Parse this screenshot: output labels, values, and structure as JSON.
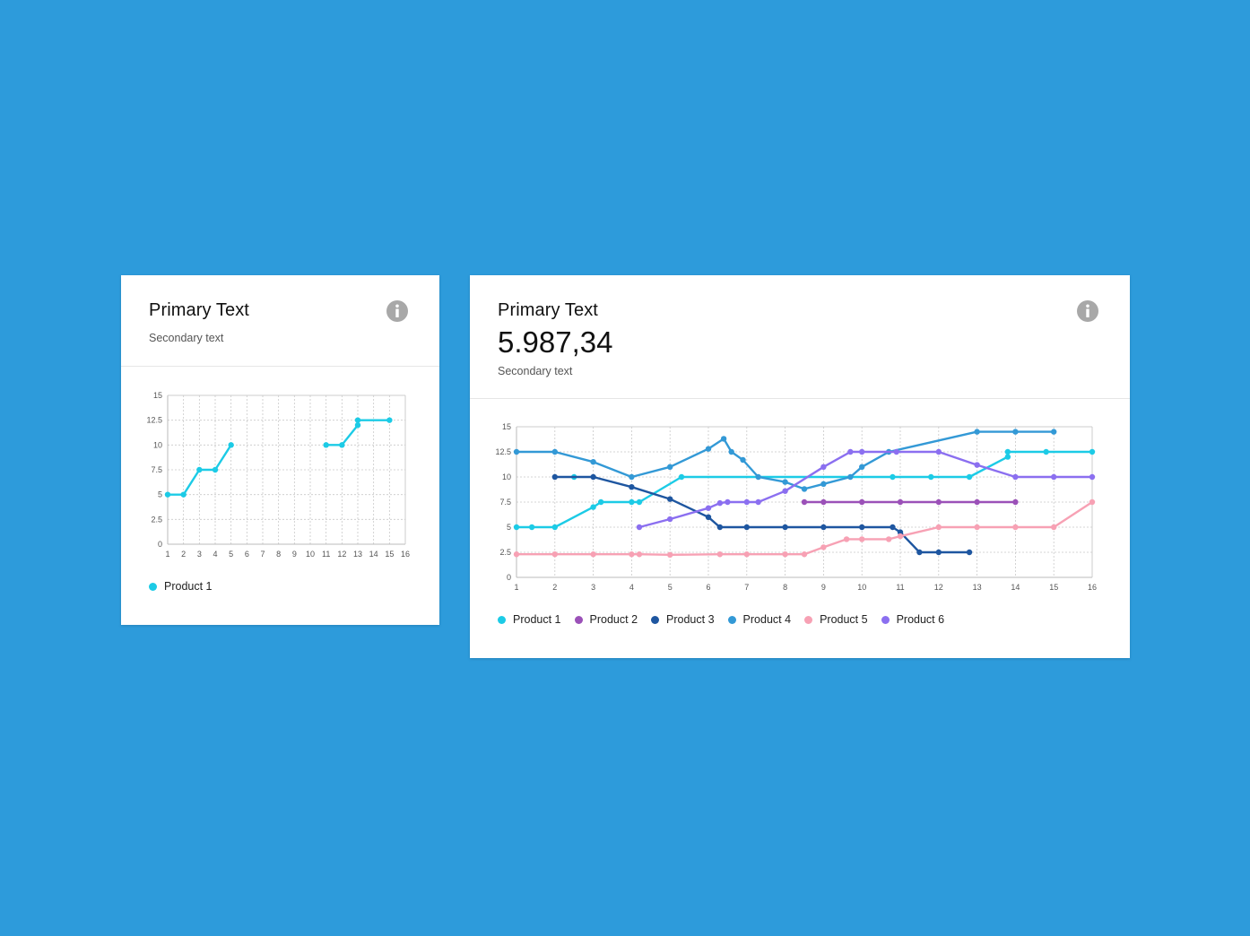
{
  "colors": {
    "background": "#2d9bdb",
    "product1": "#1ccbe6",
    "product2": "#9b51b8",
    "product3": "#1e56a0",
    "product4": "#3399d6",
    "product5": "#f7a1b4",
    "product6": "#8b6ff0"
  },
  "cards": [
    {
      "title": "Primary Text",
      "subtitle": "Secondary text",
      "info_icon": "info-icon",
      "legend": [
        {
          "label": "Product 1",
          "color": "#1ccbe6"
        }
      ]
    },
    {
      "title": "Primary Text",
      "metric": "5.987,34",
      "subtitle": "Secondary text",
      "info_icon": "info-icon",
      "legend": [
        {
          "label": "Product 1",
          "color": "#1ccbe6"
        },
        {
          "label": "Product 2",
          "color": "#9b51b8"
        },
        {
          "label": "Product 3",
          "color": "#1e56a0"
        },
        {
          "label": "Product 4",
          "color": "#3399d6"
        },
        {
          "label": "Product 5",
          "color": "#f7a1b4"
        },
        {
          "label": "Product 6",
          "color": "#8b6ff0"
        }
      ]
    }
  ],
  "chart_data": [
    {
      "type": "line",
      "grid": true,
      "xlim": [
        1,
        16
      ],
      "ylim": [
        0,
        15
      ],
      "xticks": [
        1,
        2,
        3,
        4,
        5,
        6,
        7,
        8,
        9,
        10,
        11,
        12,
        13,
        14,
        15,
        16
      ],
      "yticks": [
        "0",
        "2.5",
        "5",
        "7.5",
        "10",
        "12.5",
        "15"
      ],
      "series": [
        {
          "name": "Product 1",
          "color": "#1ccbe6",
          "segments": [
            [
              [
                1,
                5
              ],
              [
                2,
                5
              ],
              [
                3,
                7.5
              ],
              [
                4,
                7.5
              ],
              [
                5,
                10
              ]
            ],
            [
              [
                11,
                10
              ],
              [
                12,
                10
              ],
              [
                13,
                12
              ],
              [
                13,
                12.5
              ],
              [
                15,
                12.5
              ]
            ]
          ]
        }
      ]
    },
    {
      "type": "line",
      "grid": true,
      "xlim": [
        1,
        16
      ],
      "ylim": [
        0,
        15
      ],
      "xticks": [
        1,
        2,
        3,
        4,
        5,
        6,
        7,
        8,
        9,
        10,
        11,
        12,
        13,
        14,
        15,
        16
      ],
      "yticks": [
        "0",
        "2.5",
        "5",
        "7.5",
        "10",
        "12.5",
        "15"
      ],
      "series": [
        {
          "name": "Product 1",
          "color": "#1ccbe6",
          "segments": [
            [
              [
                1,
                5
              ],
              [
                1.4,
                5
              ],
              [
                2,
                5
              ],
              [
                3,
                7
              ],
              [
                3.2,
                7.5
              ],
              [
                4,
                7.5
              ],
              [
                4.2,
                7.5
              ],
              [
                5.3,
                10
              ],
              [
                10.8,
                10
              ],
              [
                11.8,
                10
              ],
              [
                12.8,
                10
              ],
              [
                13.8,
                12
              ],
              [
                13.8,
                12.5
              ],
              [
                14.8,
                12.5
              ],
              [
                16,
                12.5
              ]
            ],
            [
              [
                2.5,
                10
              ]
            ]
          ]
        },
        {
          "name": "Product 2",
          "color": "#9b51b8",
          "segments": [
            [
              [
                8.5,
                7.5
              ],
              [
                9,
                7.5
              ],
              [
                10,
                7.5
              ],
              [
                11,
                7.5
              ],
              [
                12,
                7.5
              ],
              [
                13,
                7.5
              ],
              [
                14,
                7.5
              ]
            ]
          ]
        },
        {
          "name": "Product 3",
          "color": "#1e56a0",
          "segments": [
            [
              [
                2,
                10
              ],
              [
                3,
                10
              ],
              [
                4,
                9
              ],
              [
                5,
                7.8
              ],
              [
                6,
                6
              ],
              [
                6.3,
                5
              ],
              [
                7,
                5
              ],
              [
                8,
                5
              ],
              [
                9,
                5
              ],
              [
                10,
                5
              ],
              [
                10.8,
                5
              ],
              [
                11,
                4.5
              ],
              [
                11.5,
                2.5
              ],
              [
                12,
                2.5
              ],
              [
                12.8,
                2.5
              ]
            ]
          ]
        },
        {
          "name": "Product 4",
          "color": "#3399d6",
          "segments": [
            [
              [
                1,
                12.5
              ],
              [
                2,
                12.5
              ],
              [
                3,
                11.5
              ],
              [
                4,
                10
              ],
              [
                5,
                11
              ],
              [
                6,
                12.8
              ],
              [
                6.4,
                13.8
              ],
              [
                6.6,
                12.5
              ],
              [
                6.9,
                11.7
              ],
              [
                7.3,
                10
              ],
              [
                8,
                9.5
              ],
              [
                8.5,
                8.8
              ],
              [
                9,
                9.3
              ],
              [
                9.7,
                10
              ],
              [
                10,
                11
              ],
              [
                10.7,
                12.5
              ],
              [
                13,
                14.5
              ],
              [
                14,
                14.5
              ],
              [
                15,
                14.5
              ]
            ]
          ]
        },
        {
          "name": "Product 5",
          "color": "#f7a1b4",
          "segments": [
            [
              [
                1,
                2.3
              ],
              [
                2,
                2.3
              ],
              [
                3,
                2.3
              ],
              [
                4,
                2.3
              ],
              [
                4.2,
                2.3
              ],
              [
                5,
                2.25
              ],
              [
                6.3,
                2.3
              ],
              [
                7,
                2.3
              ],
              [
                8,
                2.3
              ],
              [
                8.5,
                2.3
              ],
              [
                9,
                3
              ],
              [
                9.6,
                3.8
              ],
              [
                10,
                3.8
              ],
              [
                10.7,
                3.8
              ],
              [
                11,
                4.1
              ],
              [
                12,
                5
              ],
              [
                13,
                5
              ],
              [
                14,
                5
              ],
              [
                15,
                5
              ],
              [
                16,
                7.5
              ]
            ]
          ]
        },
        {
          "name": "Product 6",
          "color": "#8b6ff0",
          "segments": [
            [
              [
                4.2,
                5
              ],
              [
                5,
                5.8
              ],
              [
                6,
                6.9
              ],
              [
                6.3,
                7.4
              ],
              [
                6.5,
                7.5
              ],
              [
                7,
                7.5
              ],
              [
                7.3,
                7.5
              ],
              [
                8,
                8.6
              ],
              [
                9,
                11
              ],
              [
                9.7,
                12.5
              ],
              [
                10,
                12.5
              ],
              [
                10.9,
                12.5
              ],
              [
                12,
                12.5
              ],
              [
                13,
                11.2
              ],
              [
                14,
                10
              ],
              [
                15,
                10
              ],
              [
                16,
                10
              ]
            ]
          ]
        }
      ]
    }
  ]
}
